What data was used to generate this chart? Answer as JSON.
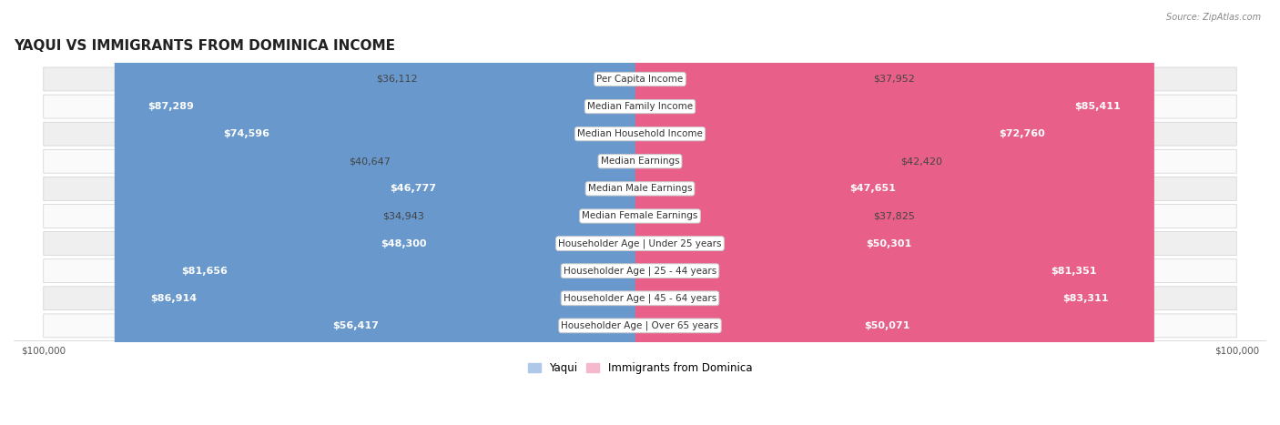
{
  "title": "YAQUI VS IMMIGRANTS FROM DOMINICA INCOME",
  "source": "Source: ZipAtlas.com",
  "categories": [
    "Per Capita Income",
    "Median Family Income",
    "Median Household Income",
    "Median Earnings",
    "Median Male Earnings",
    "Median Female Earnings",
    "Householder Age | Under 25 years",
    "Householder Age | 25 - 44 years",
    "Householder Age | 45 - 64 years",
    "Householder Age | Over 65 years"
  ],
  "yaqui_values": [
    36112,
    87289,
    74596,
    40647,
    46777,
    34943,
    48300,
    81656,
    86914,
    56417
  ],
  "dominica_values": [
    37952,
    85411,
    72760,
    42420,
    47651,
    37825,
    50301,
    81351,
    83311,
    50071
  ],
  "yaqui_labels": [
    "$36,112",
    "$87,289",
    "$74,596",
    "$40,647",
    "$46,777",
    "$34,943",
    "$48,300",
    "$81,656",
    "$86,914",
    "$56,417"
  ],
  "dominica_labels": [
    "$37,952",
    "$85,411",
    "$72,760",
    "$42,420",
    "$47,651",
    "$37,825",
    "$50,301",
    "$81,351",
    "$83,311",
    "$50,071"
  ],
  "max_value": 100000,
  "yaqui_color_light": "#adc8e8",
  "yaqui_color_dark": "#6898cc",
  "dominica_color_light": "#f5b8cc",
  "dominica_color_dark": "#e8608a",
  "bar_height": 0.52,
  "row_bg_odd": "#efefef",
  "row_bg_even": "#fafafa",
  "title_fontsize": 11,
  "label_fontsize": 8,
  "cat_fontsize": 7.5,
  "legend_fontsize": 8.5,
  "axis_label_fontsize": 7.5,
  "inside_threshold": 0.45
}
